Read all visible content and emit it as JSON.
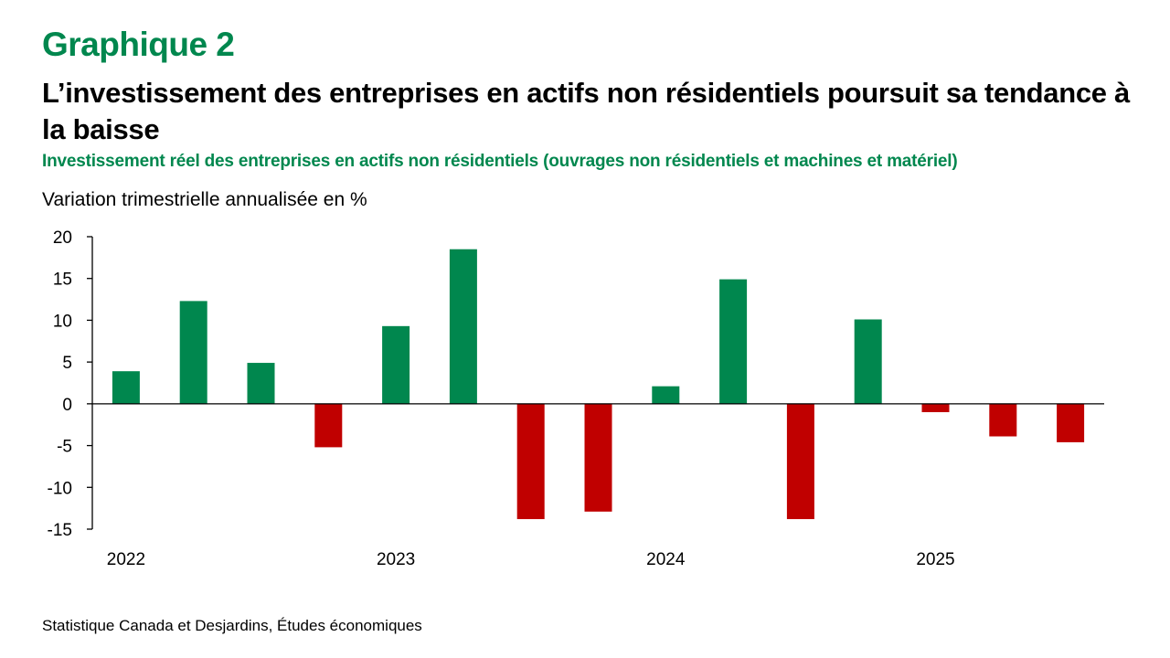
{
  "header": {
    "chart_label": "Graphique 2",
    "title": "L’investissement des entreprises en actifs non résidentiels poursuit sa tendance à la baisse",
    "subtitle": "Investissement réel des entreprises en actifs non résidentiels (ouvrages non résidentiels et machines et matériel)",
    "y_unit": "Variation trimestrielle annualisée en %"
  },
  "footer": {
    "source": "Statistique Canada et Desjardins, Études économiques"
  },
  "colors": {
    "accent": "#00874e",
    "positive": "#00874e",
    "negative": "#c00000",
    "axis": "#000000"
  },
  "chart_data": {
    "type": "bar",
    "title": "L’investissement des entreprises en actifs non résidentiels poursuit sa tendance à la baisse",
    "subtitle": "Investissement réel des entreprises en actifs non résidentiels (ouvrages non résidentiels et machines et matériel)",
    "xlabel": "",
    "ylabel": "Variation trimestrielle annualisée en %",
    "categories": [
      "2022 T1",
      "2022 T2",
      "2022 T3",
      "2022 T4",
      "2023 T1",
      "2023 T2",
      "2023 T3",
      "2023 T4",
      "2024 T1",
      "2024 T2",
      "2024 T3",
      "2024 T4",
      "2025 T1",
      "2025 T2",
      "2025 T3"
    ],
    "x_tick_labels": [
      {
        "index": 0,
        "label": "2022"
      },
      {
        "index": 4,
        "label": "2023"
      },
      {
        "index": 8,
        "label": "2024"
      },
      {
        "index": 12,
        "label": "2025"
      }
    ],
    "values": [
      3.9,
      12.3,
      4.9,
      -5.2,
      9.3,
      18.5,
      -13.8,
      -12.9,
      2.1,
      14.9,
      -13.8,
      10.1,
      -1.0,
      -3.9,
      -4.6
    ],
    "ylim": [
      -15,
      20
    ],
    "y_ticks": [
      20,
      15,
      10,
      5,
      0,
      -5,
      -10,
      -15
    ],
    "grid": false,
    "legend": "none",
    "color_rule": "positive values green, negative values red"
  }
}
